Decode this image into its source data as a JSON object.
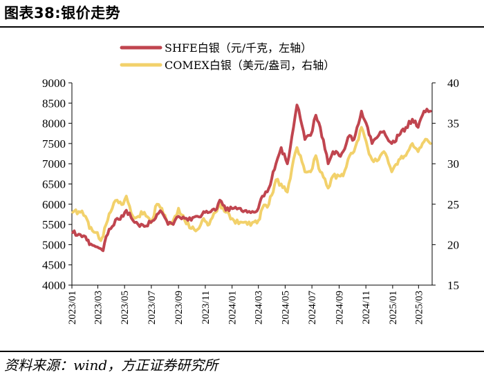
{
  "figure": {
    "title": "图表38:银价走势",
    "source": "资料来源：wind，方正证券研究所"
  },
  "chart_data": {
    "type": "line",
    "title": "图表38:银价走势",
    "legend": [
      {
        "name": "SHFE白银（元/千克，左轴）",
        "color": "#C0454F"
      },
      {
        "name": "COMEX白银（美元/盎司，右轴）",
        "color": "#F2D16B"
      }
    ],
    "legend_position": "top-right",
    "ylim_left": [
      4000,
      9000
    ],
    "ylim_right": [
      15,
      40
    ],
    "yticks_left": [
      "9000",
      "8500",
      "8000",
      "7500",
      "7000",
      "6500",
      "6000",
      "5500",
      "5000",
      "4500",
      "4000"
    ],
    "yticks_right": [
      "40",
      "35",
      "30",
      "25",
      "20",
      "15"
    ],
    "x_start": "2023/01",
    "x_end": "2025/03",
    "xticks": [
      "2023/01",
      "2023/03",
      "2023/05",
      "2023/07",
      "2023/09",
      "2023/11",
      "2024/01",
      "2024/03",
      "2024/05",
      "2024/07",
      "2024/09",
      "2024/11",
      "2025/01",
      "2025/03"
    ],
    "grid": false,
    "series": [
      {
        "name": "SHFE白银（元/千克，左轴）",
        "axis": "left",
        "color": "#C0454F",
        "points": [
          [
            "2023/01/03",
            5300
          ],
          [
            "2023/01/20",
            5250
          ],
          [
            "2023/02/01",
            5200
          ],
          [
            "2023/02/10",
            5000
          ],
          [
            "2023/02/24",
            4950
          ],
          [
            "2023/03/08",
            4900
          ],
          [
            "2023/03/13",
            4850
          ],
          [
            "2023/03/20",
            5200
          ],
          [
            "2023/04/03",
            5450
          ],
          [
            "2023/04/14",
            5650
          ],
          [
            "2023/04/28",
            5700
          ],
          [
            "2023/05/05",
            5850
          ],
          [
            "2023/05/20",
            5600
          ],
          [
            "2023/06/01",
            5500
          ],
          [
            "2023/06/15",
            5450
          ],
          [
            "2023/06/30",
            5550
          ],
          [
            "2023/07/14",
            5750
          ],
          [
            "2023/07/25",
            5800
          ],
          [
            "2023/08/08",
            5500
          ],
          [
            "2023/08/20",
            5500
          ],
          [
            "2023/09/01",
            5700
          ],
          [
            "2023/09/15",
            5650
          ],
          [
            "2023/09/30",
            5600
          ],
          [
            "2023/10/10",
            5700
          ],
          [
            "2023/10/25",
            5750
          ],
          [
            "2023/11/10",
            5800
          ],
          [
            "2023/11/24",
            5850
          ],
          [
            "2023/12/04",
            6100
          ],
          [
            "2023/12/18",
            5850
          ],
          [
            "2024/01/05",
            5900
          ],
          [
            "2024/01/20",
            5900
          ],
          [
            "2024/02/05",
            5800
          ],
          [
            "2024/02/20",
            5800
          ],
          [
            "2024/03/01",
            5900
          ],
          [
            "2024/03/10",
            6200
          ],
          [
            "2024/03/25",
            6400
          ],
          [
            "2024/04/10",
            7000
          ],
          [
            "2024/04/22",
            7400
          ],
          [
            "2024/05/06",
            7000
          ],
          [
            "2024/05/20",
            7900
          ],
          [
            "2024/05/28",
            8450
          ],
          [
            "2024/06/05",
            8100
          ],
          [
            "2024/06/15",
            7600
          ],
          [
            "2024/06/28",
            7700
          ],
          [
            "2024/07/10",
            8200
          ],
          [
            "2024/07/20",
            7900
          ],
          [
            "2024/08/07",
            7000
          ],
          [
            "2024/08/18",
            7300
          ],
          [
            "2024/09/01",
            7200
          ],
          [
            "2024/09/10",
            7300
          ],
          [
            "2024/09/25",
            7700
          ],
          [
            "2024/10/05",
            7600
          ],
          [
            "2024/10/22",
            8300
          ],
          [
            "2024/11/05",
            7900
          ],
          [
            "2024/11/15",
            7500
          ],
          [
            "2024/11/30",
            7700
          ],
          [
            "2024/12/12",
            7800
          ],
          [
            "2024/12/30",
            7500
          ],
          [
            "2025/01/15",
            7700
          ],
          [
            "2025/01/31",
            7900
          ],
          [
            "2025/02/15",
            8100
          ],
          [
            "2025/02/28",
            7900
          ],
          [
            "2025/03/10",
            8200
          ],
          [
            "2025/03/20",
            8350
          ],
          [
            "2025/03/28",
            8300
          ]
        ]
      },
      {
        "name": "COMEX白银（美元/盎司，右轴）",
        "axis": "right",
        "color": "#F2D16B",
        "points": [
          [
            "2023/01/03",
            24.0
          ],
          [
            "2023/01/20",
            24.0
          ],
          [
            "2023/02/01",
            23.5
          ],
          [
            "2023/02/10",
            22.0
          ],
          [
            "2023/02/24",
            21.5
          ],
          [
            "2023/03/08",
            20.5
          ],
          [
            "2023/03/13",
            21.0
          ],
          [
            "2023/03/20",
            22.5
          ],
          [
            "2023/04/03",
            24.5
          ],
          [
            "2023/04/14",
            25.5
          ],
          [
            "2023/04/28",
            25.0
          ],
          [
            "2023/05/05",
            26.0
          ],
          [
            "2023/05/20",
            23.5
          ],
          [
            "2023/06/01",
            23.5
          ],
          [
            "2023/06/15",
            24.0
          ],
          [
            "2023/06/30",
            22.7
          ],
          [
            "2023/07/14",
            25.0
          ],
          [
            "2023/07/25",
            24.5
          ],
          [
            "2023/08/08",
            22.7
          ],
          [
            "2023/08/20",
            23.0
          ],
          [
            "2023/09/01",
            24.5
          ],
          [
            "2023/09/15",
            23.0
          ],
          [
            "2023/09/30",
            22.0
          ],
          [
            "2023/10/10",
            21.7
          ],
          [
            "2023/10/25",
            23.0
          ],
          [
            "2023/11/10",
            22.5
          ],
          [
            "2023/11/24",
            24.0
          ],
          [
            "2023/12/04",
            25.0
          ],
          [
            "2023/12/18",
            24.0
          ],
          [
            "2024/01/05",
            23.0
          ],
          [
            "2024/01/20",
            22.8
          ],
          [
            "2024/02/05",
            22.5
          ],
          [
            "2024/02/20",
            22.8
          ],
          [
            "2024/03/01",
            23.0
          ],
          [
            "2024/03/10",
            24.5
          ],
          [
            "2024/03/25",
            25.0
          ],
          [
            "2024/04/10",
            28.0
          ],
          [
            "2024/04/22",
            27.5
          ],
          [
            "2024/05/06",
            26.5
          ],
          [
            "2024/05/20",
            30.5
          ],
          [
            "2024/05/28",
            32.0
          ],
          [
            "2024/06/05",
            31.0
          ],
          [
            "2024/06/15",
            29.0
          ],
          [
            "2024/06/28",
            29.0
          ],
          [
            "2024/07/10",
            31.0
          ],
          [
            "2024/07/20",
            29.0
          ],
          [
            "2024/08/07",
            27.0
          ],
          [
            "2024/08/18",
            28.5
          ],
          [
            "2024/09/01",
            28.5
          ],
          [
            "2024/09/10",
            28.5
          ],
          [
            "2024/09/25",
            31.0
          ],
          [
            "2024/10/05",
            31.5
          ],
          [
            "2024/10/22",
            34.5
          ],
          [
            "2024/11/05",
            32.0
          ],
          [
            "2024/11/15",
            30.5
          ],
          [
            "2024/11/30",
            30.5
          ],
          [
            "2024/12/12",
            31.5
          ],
          [
            "2024/12/30",
            29.0
          ],
          [
            "2025/01/15",
            30.5
          ],
          [
            "2025/01/31",
            31.0
          ],
          [
            "2025/02/15",
            32.5
          ],
          [
            "2025/02/28",
            31.5
          ],
          [
            "2025/03/10",
            32.5
          ],
          [
            "2025/03/20",
            33.0
          ],
          [
            "2025/03/28",
            32.5
          ]
        ]
      }
    ]
  }
}
